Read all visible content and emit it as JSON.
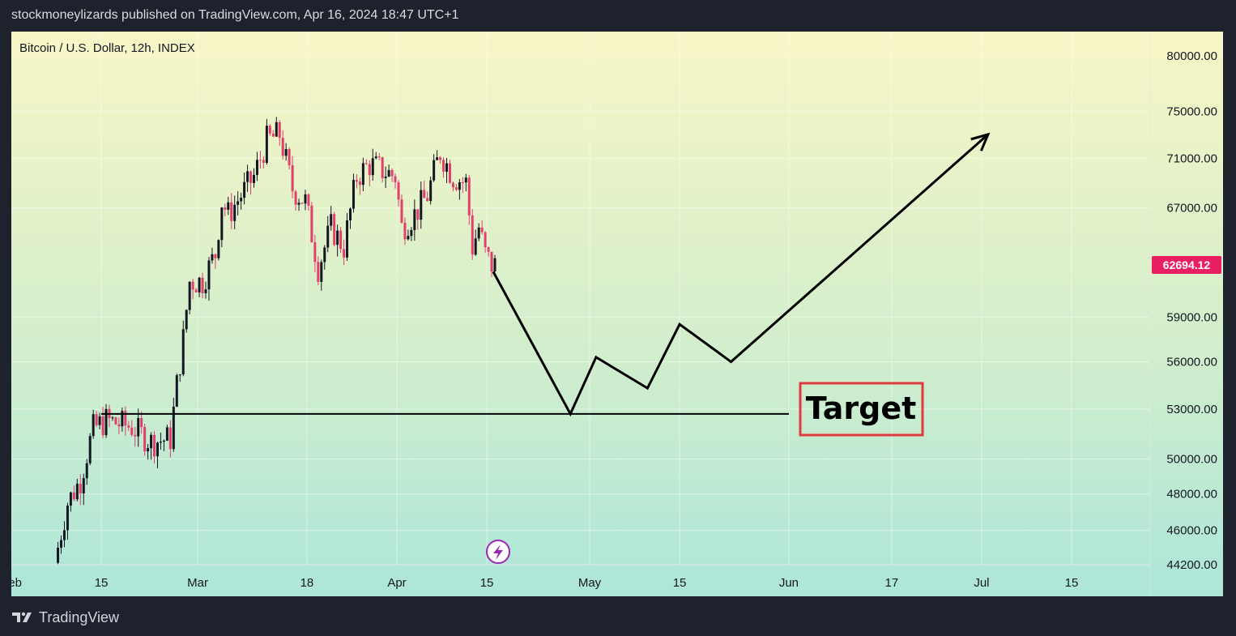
{
  "header": {
    "publisher_line": "stockmoneylizards published on TradingView.com, Apr 16, 2024 18:47 UTC+1"
  },
  "footer": {
    "brand": "TradingView",
    "logo_icon": "tradingview-logo-icon"
  },
  "colors": {
    "candle_down": "#e0406a",
    "candle_up": "#131722",
    "price_tag": "#e91e63",
    "target_border": "#e03a3e"
  },
  "chart_data": {
    "type": "candlestick",
    "title": "Bitcoin / U.S. Dollar, 12h, INDEX",
    "y_scale": "log",
    "ylim": [
      44200,
      82000
    ],
    "y_ticks": [
      "80000.00",
      "75000.00",
      "71000.00",
      "67000.00",
      "59000.00",
      "56000.00",
      "53000.00",
      "50000.00",
      "48000.00",
      "46000.00",
      "44200.00"
    ],
    "x_ticks": [
      {
        "label": "Feb",
        "date": "2024-02-01"
      },
      {
        "label": "15",
        "date": "2024-02-15"
      },
      {
        "label": "Mar",
        "date": "2024-03-01"
      },
      {
        "label": "18",
        "date": "2024-03-18"
      },
      {
        "label": "Apr",
        "date": "2024-04-01"
      },
      {
        "label": "15",
        "date": "2024-04-15"
      },
      {
        "label": "May",
        "date": "2024-05-01"
      },
      {
        "label": "15",
        "date": "2024-05-15"
      },
      {
        "label": "Jun",
        "date": "2024-06-01"
      },
      {
        "label": "17",
        "date": "2024-06-17"
      },
      {
        "label": "Jul",
        "date": "2024-07-01"
      },
      {
        "label": "15",
        "date": "2024-07-15"
      }
    ],
    "price_control_points": [
      [
        "2024-02-08",
        44300
      ],
      [
        "2024-02-10",
        47500
      ],
      [
        "2024-02-12",
        48800
      ],
      [
        "2024-02-14",
        51800
      ],
      [
        "2024-02-16",
        52300
      ],
      [
        "2024-02-20",
        51900
      ],
      [
        "2024-02-23",
        51000
      ],
      [
        "2024-02-26",
        51200
      ],
      [
        "2024-02-27",
        54500
      ],
      [
        "2024-02-28",
        57500
      ],
      [
        "2024-02-29",
        61500
      ],
      [
        "2024-03-02",
        61500
      ],
      [
        "2024-03-04",
        63500
      ],
      [
        "2024-03-05",
        67500
      ],
      [
        "2024-03-06",
        66500
      ],
      [
        "2024-03-08",
        68000
      ],
      [
        "2024-03-10",
        69500
      ],
      [
        "2024-03-12",
        72500
      ],
      [
        "2024-03-14",
        73000
      ],
      [
        "2024-03-16",
        68500
      ],
      [
        "2024-03-18",
        67500
      ],
      [
        "2024-03-20",
        62500
      ],
      [
        "2024-03-22",
        65500
      ],
      [
        "2024-03-24",
        64000
      ],
      [
        "2024-03-26",
        69500
      ],
      [
        "2024-03-28",
        70500
      ],
      [
        "2024-03-30",
        70000
      ],
      [
        "2024-04-01",
        69500
      ],
      [
        "2024-04-02",
        65500
      ],
      [
        "2024-04-04",
        66500
      ],
      [
        "2024-04-06",
        68000
      ],
      [
        "2024-04-08",
        71500
      ],
      [
        "2024-04-10",
        69500
      ],
      [
        "2024-04-12",
        69000
      ],
      [
        "2024-04-13",
        64000
      ],
      [
        "2024-04-14",
        65500
      ],
      [
        "2024-04-15",
        63500
      ],
      [
        "2024-04-16",
        62694
      ]
    ],
    "last_price": "62694.12",
    "projection_path": [
      [
        "2024-04-16",
        62200
      ],
      [
        "2024-04-28",
        52700
      ],
      [
        "2024-05-02",
        56300
      ],
      [
        "2024-05-10",
        54300
      ],
      [
        "2024-05-15",
        58500
      ],
      [
        "2024-05-23",
        56000
      ],
      [
        "2024-07-02",
        73000
      ]
    ],
    "support_line": {
      "price": 52700,
      "from": "2024-02-15",
      "to": "2024-06-01"
    },
    "annotation": {
      "text": "Target"
    },
    "watermark_icon": "lightning-icon"
  }
}
